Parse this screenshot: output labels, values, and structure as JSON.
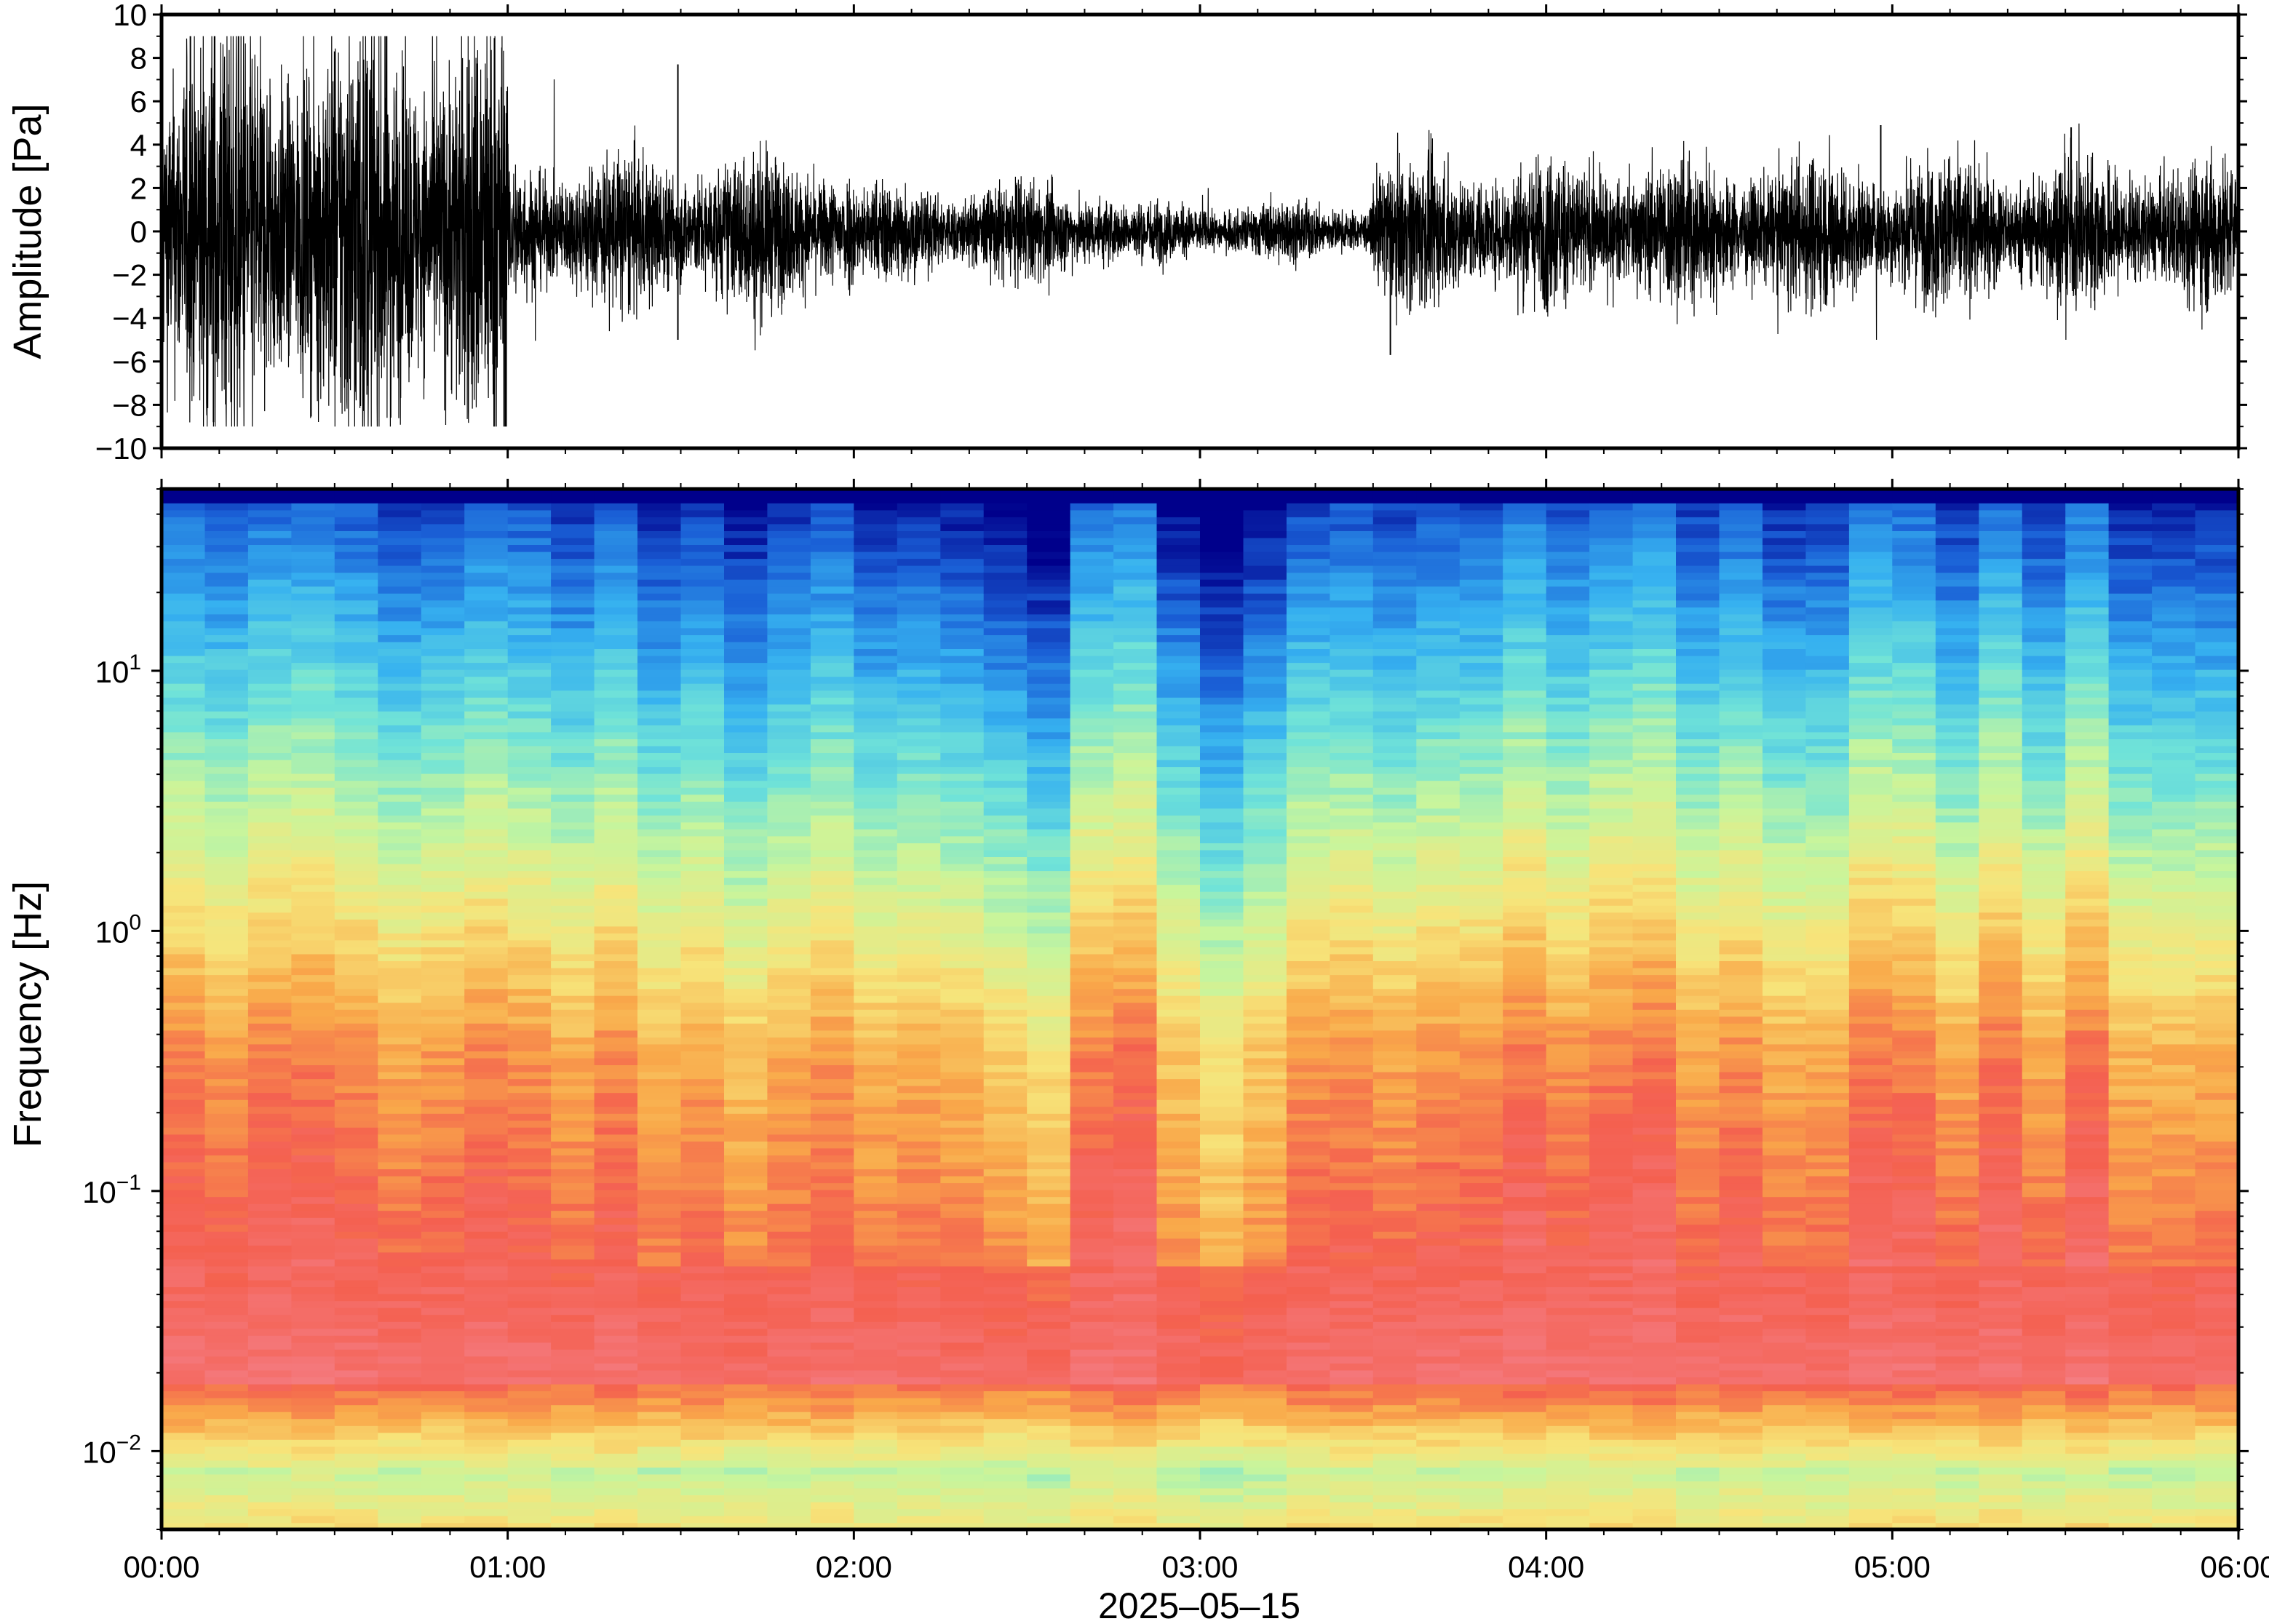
{
  "chart_data": [
    {
      "type": "line",
      "title": "",
      "ylabel": "Amplitude [Pa]",
      "xlabel": "",
      "xlim": [
        "00:00",
        "06:00"
      ],
      "ylim": [
        -10,
        10
      ],
      "yticks": [
        "10",
        "8",
        "6",
        "4",
        "2",
        "0",
        "−2",
        "−4",
        "−6",
        "−8",
        "−10"
      ],
      "envelope_segments": [
        {
          "from": "00:00",
          "to": "01:00",
          "amplitude": 4.5,
          "peak": 9
        },
        {
          "from": "01:00",
          "to": "02:00",
          "amplitude": 1.6,
          "peak": 7.7
        },
        {
          "from": "02:00",
          "to": "02:45",
          "amplitude": 1.0,
          "peak": 3
        },
        {
          "from": "02:45",
          "to": "03:30",
          "amplitude": 0.6,
          "peak": 2
        },
        {
          "from": "03:30",
          "to": "06:00",
          "amplitude": 1.5,
          "peak": 5
        }
      ]
    },
    {
      "type": "heatmap",
      "title": "",
      "ylabel": "Frequency [Hz]",
      "xlabel": "2025–05–15",
      "yscale": "log",
      "ylim_hz": [
        0.005,
        50
      ],
      "yticks": [
        {
          "base": "10",
          "exp": "1"
        },
        {
          "base": "10",
          "exp": "0"
        },
        {
          "base": "10",
          "exp": "−1"
        },
        {
          "base": "10",
          "exp": "−2"
        }
      ],
      "xticks": [
        "00:00",
        "01:00",
        "02:00",
        "03:00",
        "04:00",
        "05:00",
        "06:00"
      ],
      "colormap": [
        "#00008b",
        "#1a5fd6",
        "#36b1f0",
        "#70e3d8",
        "#c8f59c",
        "#f7e47a",
        "#f9a94a",
        "#f4604f",
        "#f4777a",
        "#f7a0a8"
      ]
    }
  ]
}
